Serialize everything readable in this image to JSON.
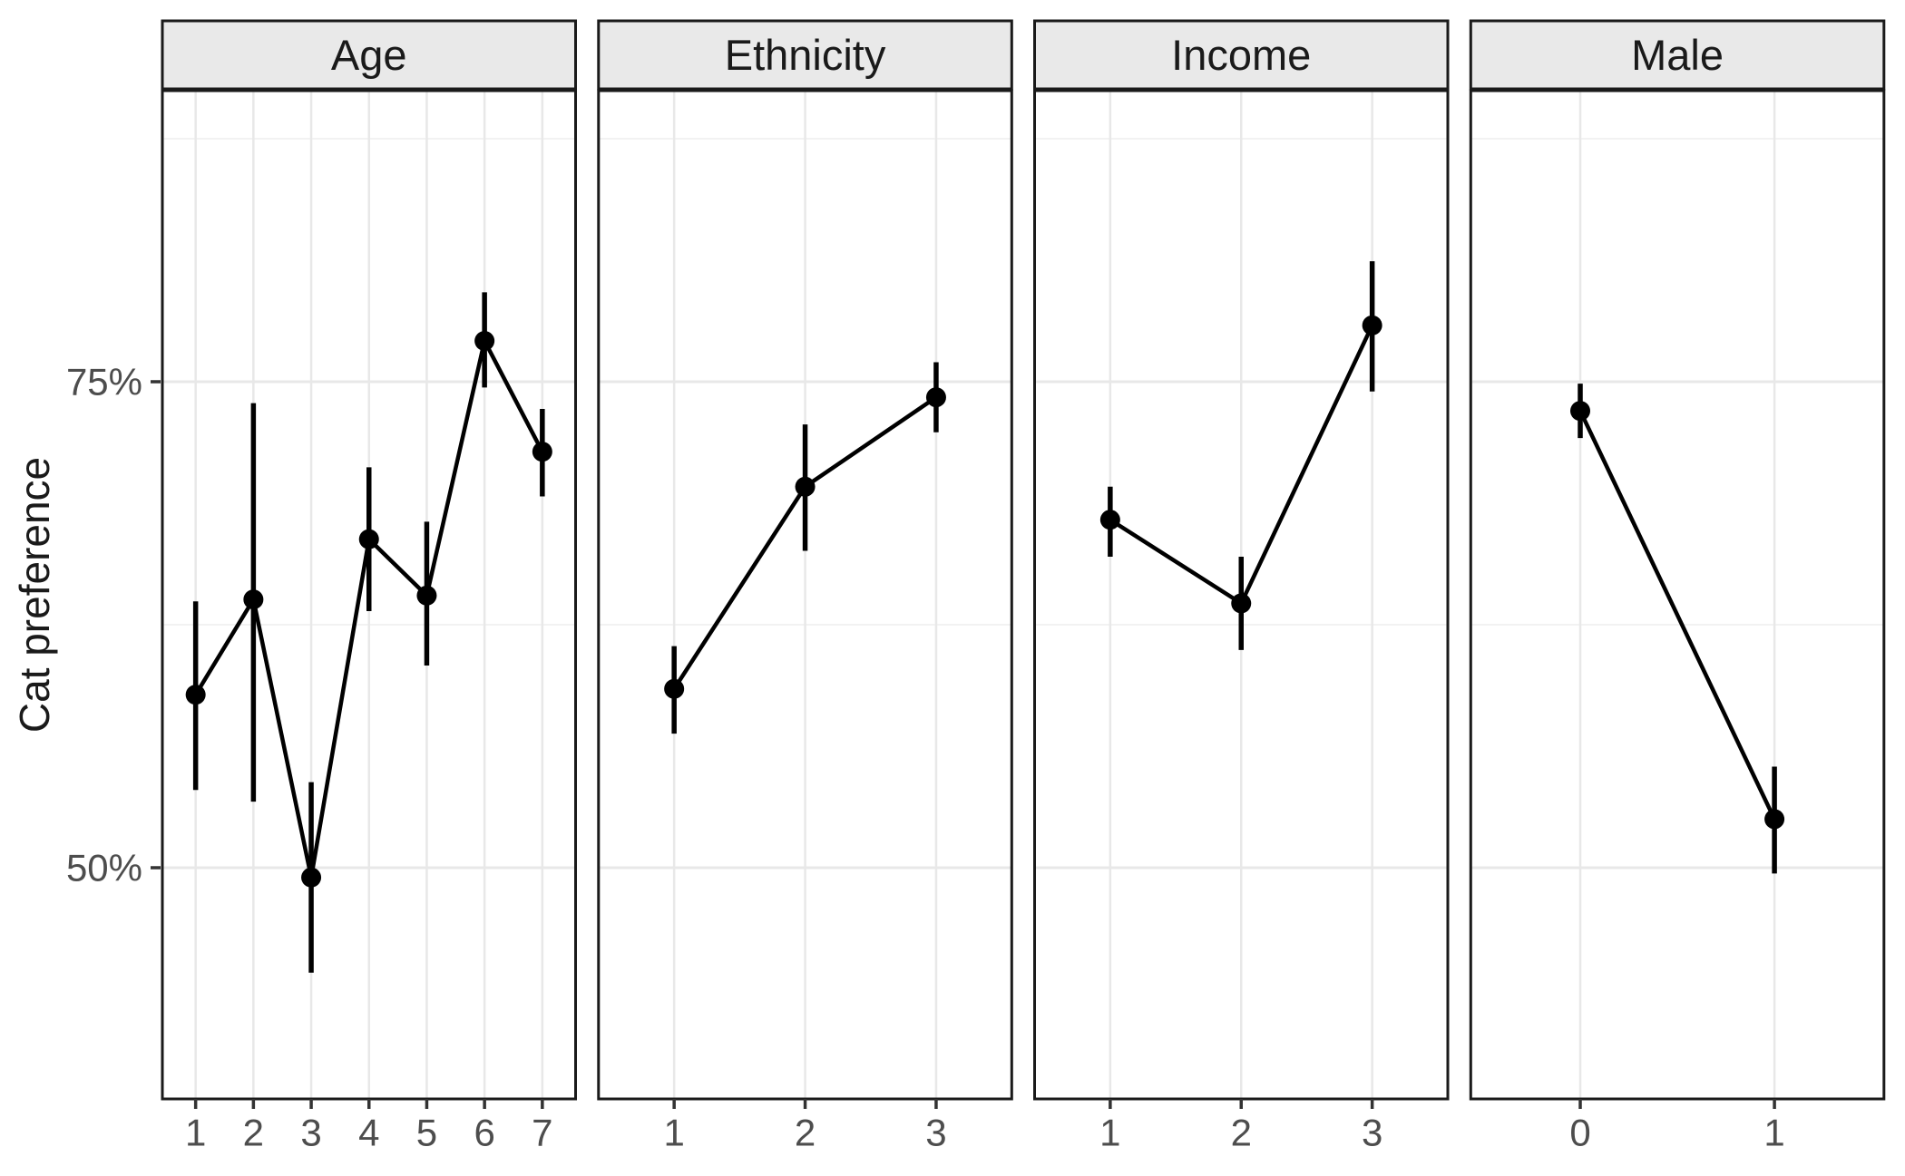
{
  "figure": {
    "kind": "faceted-errorbar-line-plot",
    "background": "#ffffff"
  },
  "chart_data": {
    "type": "line",
    "title": "",
    "xlabel": "",
    "ylabel": "Cat preference",
    "ylim": [
      38.1,
      90.0
    ],
    "grid": "on",
    "legend": "none",
    "units": "percent",
    "y_axis": {
      "ticks": [
        {
          "label": "75%",
          "value": 75
        },
        {
          "label": "50%",
          "value": 50
        }
      ],
      "minor_gridline_values": [
        87.5,
        62.5
      ]
    },
    "facets": [
      {
        "label": "Age",
        "x_tick_labels": [
          "1",
          "2",
          "3",
          "4",
          "5",
          "6",
          "7"
        ],
        "x": [
          1,
          2,
          3,
          4,
          5,
          6,
          7
        ],
        "means": [
          58.9,
          63.8,
          49.5,
          66.9,
          64.0,
          77.1,
          71.4
        ],
        "ci_low": [
          54.0,
          53.4,
          44.6,
          63.2,
          60.4,
          74.7,
          69.1
        ],
        "ci_high": [
          63.7,
          73.9,
          54.4,
          70.6,
          67.8,
          79.6,
          73.6
        ]
      },
      {
        "label": "Ethnicity",
        "x_tick_labels": [
          "1",
          "2",
          "3"
        ],
        "x": [
          1,
          2,
          3
        ],
        "means": [
          59.2,
          69.6,
          74.2
        ],
        "ci_low": [
          56.9,
          66.3,
          72.4
        ],
        "ci_high": [
          61.4,
          72.8,
          76.0
        ]
      },
      {
        "label": "Income",
        "x_tick_labels": [
          "1",
          "2",
          "3"
        ],
        "x": [
          1,
          2,
          3
        ],
        "means": [
          67.9,
          63.6,
          77.9
        ],
        "ci_low": [
          66.0,
          61.2,
          74.5
        ],
        "ci_high": [
          69.6,
          66.0,
          81.2
        ]
      },
      {
        "label": "Male",
        "x_tick_labels": [
          "0",
          "1"
        ],
        "x": [
          0,
          1
        ],
        "means": [
          73.5,
          52.5
        ],
        "ci_low": [
          72.1,
          49.7
        ],
        "ci_high": [
          74.9,
          55.2
        ]
      }
    ],
    "colors": {
      "data": "#000000",
      "grid_major": "#e8e8e8",
      "grid_minor": "#f1f1f1",
      "panel_border": "#1a1a1a",
      "panel_background": "#ffffff",
      "strip_background": "#e9e9e9",
      "strip_text": "#1a1a1a",
      "axis_text": "#4d4d4d",
      "axis_title": "#1a1a1a",
      "tick_mark": "#333333"
    }
  }
}
